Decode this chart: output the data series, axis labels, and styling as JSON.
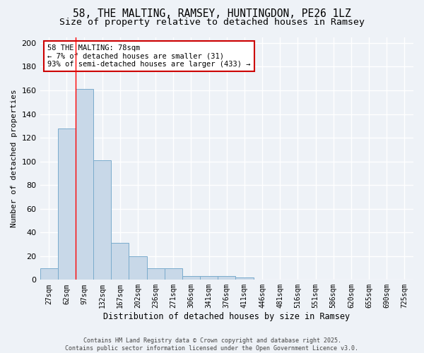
{
  "title1": "58, THE MALTING, RAMSEY, HUNTINGDON, PE26 1LZ",
  "title2": "Size of property relative to detached houses in Ramsey",
  "xlabel": "Distribution of detached houses by size in Ramsey",
  "ylabel": "Number of detached properties",
  "bin_labels": [
    "27sqm",
    "62sqm",
    "97sqm",
    "132sqm",
    "167sqm",
    "202sqm",
    "236sqm",
    "271sqm",
    "306sqm",
    "341sqm",
    "376sqm",
    "411sqm",
    "446sqm",
    "481sqm",
    "516sqm",
    "551sqm",
    "586sqm",
    "620sqm",
    "655sqm",
    "690sqm",
    "725sqm"
  ],
  "bar_heights": [
    10,
    128,
    161,
    101,
    31,
    20,
    10,
    10,
    3,
    3,
    3,
    2,
    0,
    0,
    0,
    0,
    0,
    0,
    0,
    0,
    0
  ],
  "bar_color": "#c8d8e8",
  "bar_edge_color": "#7aabcc",
  "red_line_x": 1.5,
  "annotation_text": "58 THE MALTING: 78sqm\n← 7% of detached houses are smaller (31)\n93% of semi-detached houses are larger (433) →",
  "annotation_box_color": "#ffffff",
  "annotation_box_edge": "#cc0000",
  "ylim": [
    0,
    205
  ],
  "yticks": [
    0,
    20,
    40,
    60,
    80,
    100,
    120,
    140,
    160,
    180,
    200
  ],
  "footnote": "Contains HM Land Registry data © Crown copyright and database right 2025.\nContains public sector information licensed under the Open Government Licence v3.0.",
  "bg_color": "#eef2f7",
  "grid_color": "#ffffff",
  "title_fontsize": 10.5,
  "subtitle_fontsize": 9.5,
  "annot_fontsize": 7.5,
  "ylabel_fontsize": 8,
  "xlabel_fontsize": 8.5,
  "tick_fontsize": 7,
  "footnote_fontsize": 6
}
